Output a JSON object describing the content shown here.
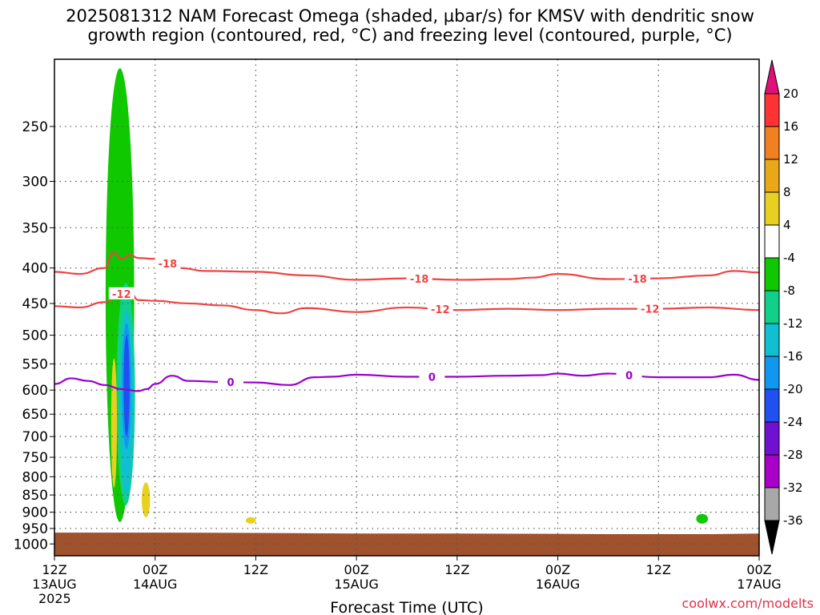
{
  "title": {
    "line1": "2025081312 NAM Forecast Omega (shaded, µbar/s) for KMSV with dendritic snow",
    "line2": "growth region (contoured, red, °C) and freezing level (contoured, purple, °C)"
  },
  "credit": "coolwx.com/modelts",
  "chart_data": {
    "type": "heatmap",
    "xlabel": "Forecast Time (UTC)",
    "xlim_hours": [
      0,
      84
    ],
    "x_ticks": [
      {
        "hour": 0,
        "lines": [
          "12Z",
          "13AUG",
          "2025"
        ]
      },
      {
        "hour": 12,
        "lines": [
          "00Z",
          "14AUG"
        ]
      },
      {
        "hour": 24,
        "lines": [
          "12Z"
        ]
      },
      {
        "hour": 36,
        "lines": [
          "00Z",
          "15AUG"
        ]
      },
      {
        "hour": 48,
        "lines": [
          "12Z"
        ]
      },
      {
        "hour": 60,
        "lines": [
          "00Z",
          "16AUG"
        ]
      },
      {
        "hour": 72,
        "lines": [
          "12Z"
        ]
      },
      {
        "hour": 84,
        "lines": [
          "00Z",
          "17AUG"
        ]
      }
    ],
    "y_axis": "pressure (hPa), log scale",
    "ylim": [
      1040,
      200
    ],
    "y_ticks": [
      250,
      300,
      350,
      400,
      450,
      500,
      550,
      600,
      650,
      700,
      750,
      800,
      850,
      900,
      950,
      1000
    ],
    "grid": true,
    "colorbar": {
      "labels": [
        "20",
        "16",
        "12",
        "8",
        "4",
        "-4",
        "-8",
        "-12",
        "-16",
        "-20",
        "-24",
        "-28",
        "-32",
        "-36"
      ],
      "bins": [
        {
          "from": 16,
          "to": 20,
          "color": "#ff3333"
        },
        {
          "from": 12,
          "to": 16,
          "color": "#f08020"
        },
        {
          "from": 8,
          "to": 12,
          "color": "#e8a818"
        },
        {
          "from": 4,
          "to": 8,
          "color": "#e8d020"
        },
        {
          "from": -4,
          "to": 4,
          "color": "#ffffff"
        },
        {
          "from": -8,
          "to": -4,
          "color": "#10c800"
        },
        {
          "from": -12,
          "to": -8,
          "color": "#10d08a"
        },
        {
          "from": -16,
          "to": -12,
          "color": "#10c0d0"
        },
        {
          "from": -20,
          "to": -16,
          "color": "#1098f0"
        },
        {
          "from": -24,
          "to": -20,
          "color": "#2050f0"
        },
        {
          "from": -28,
          "to": -24,
          "color": "#7010d0"
        },
        {
          "from": -32,
          "to": -28,
          "color": "#a800c8"
        },
        {
          "from": -36,
          "to": -32,
          "color": "#a8a8a8"
        }
      ],
      "over_color": "#e0107a",
      "under_color": "#000000"
    },
    "omega_features": [
      {
        "color": "#10c800",
        "hour": [
          6.4,
          9.8
        ],
        "p": [
          206,
          930
        ],
        "center_hour": 7.8
      },
      {
        "color": "#10d08a",
        "hour": [
          7.4,
          9.6
        ],
        "p": [
          420,
          880
        ],
        "center_hour": 8.5
      },
      {
        "color": "#10c0d0",
        "hour": [
          7.8,
          9.4
        ],
        "p": [
          460,
          850
        ],
        "center_hour": 8.6
      },
      {
        "color": "#1098f0",
        "hour": [
          8.0,
          9.1
        ],
        "p": [
          480,
          730
        ],
        "center_hour": 8.6
      },
      {
        "color": "#2050f0",
        "hour": [
          8.2,
          8.9
        ],
        "p": [
          500,
          700
        ],
        "center_hour": 8.6
      },
      {
        "color": "#e8d020",
        "hour": [
          6.8,
          7.5
        ],
        "p": [
          540,
          830
        ],
        "center_hour": 7.1
      },
      {
        "color": "#e8d020",
        "hour": [
          10.5,
          11.5
        ],
        "p": [
          815,
          915
        ],
        "center_hour": 10.9
      },
      {
        "color": "#e8d020",
        "hour": [
          22.8,
          24.0
        ],
        "p": [
          915,
          935
        ],
        "center_hour": 23.4
      },
      {
        "color": "#10c800",
        "hour": [
          76.6,
          78.0
        ],
        "p": [
          905,
          935
        ],
        "center_hour": 77.2
      }
    ],
    "contours": [
      {
        "level": -18,
        "color": "#ee4444",
        "hours": [
          0,
          3,
          6,
          7,
          8,
          9,
          10,
          12,
          15,
          18,
          24,
          30,
          36,
          42,
          48,
          54,
          57,
          60,
          66,
          72,
          78,
          81,
          84
        ],
        "p": [
          405,
          408,
          400,
          380,
          388,
          383,
          387,
          388,
          400,
          404,
          405,
          410,
          416,
          414,
          416,
          415,
          413,
          408,
          415,
          414,
          410,
          404,
          406
        ],
        "label_hours": [
          13.5,
          43.5,
          69.5
        ]
      },
      {
        "level": -12,
        "color": "#ee4444",
        "hours": [
          0,
          3,
          6,
          7.5,
          9,
          10,
          12,
          16,
          20,
          24,
          27,
          30,
          36,
          42,
          48,
          54,
          60,
          66,
          72,
          78,
          84
        ],
        "p": [
          454,
          456,
          448,
          437,
          433,
          445,
          446,
          450,
          453,
          460,
          465,
          457,
          463,
          456,
          460,
          458,
          460,
          458,
          458,
          456,
          460
        ],
        "label_hours": [
          8.0,
          46.0,
          71.0
        ]
      },
      {
        "level": 0,
        "color": "#9900cc",
        "hours": [
          0,
          2,
          4,
          6,
          8,
          10,
          11,
          12,
          14,
          16,
          20,
          24,
          28,
          31,
          33,
          36,
          42,
          48,
          54,
          58,
          60,
          63,
          66,
          72,
          78,
          81,
          84
        ],
        "p": [
          588,
          577,
          582,
          590,
          598,
          602,
          598,
          588,
          572,
          582,
          584,
          585,
          590,
          575,
          574,
          570,
          574,
          574,
          572,
          571,
          568,
          572,
          568,
          575,
          575,
          570,
          580
        ],
        "label_hours": [
          21.0,
          45.0,
          68.5
        ]
      }
    ],
    "terrain": {
      "color": "#a0522d",
      "top_p": [
        963,
        963,
        964,
        966,
        966,
        967,
        968,
        968,
        966
      ],
      "hours": [
        0,
        12,
        24,
        36,
        48,
        60,
        66,
        78,
        84
      ],
      "bottom_p": 1040
    }
  }
}
